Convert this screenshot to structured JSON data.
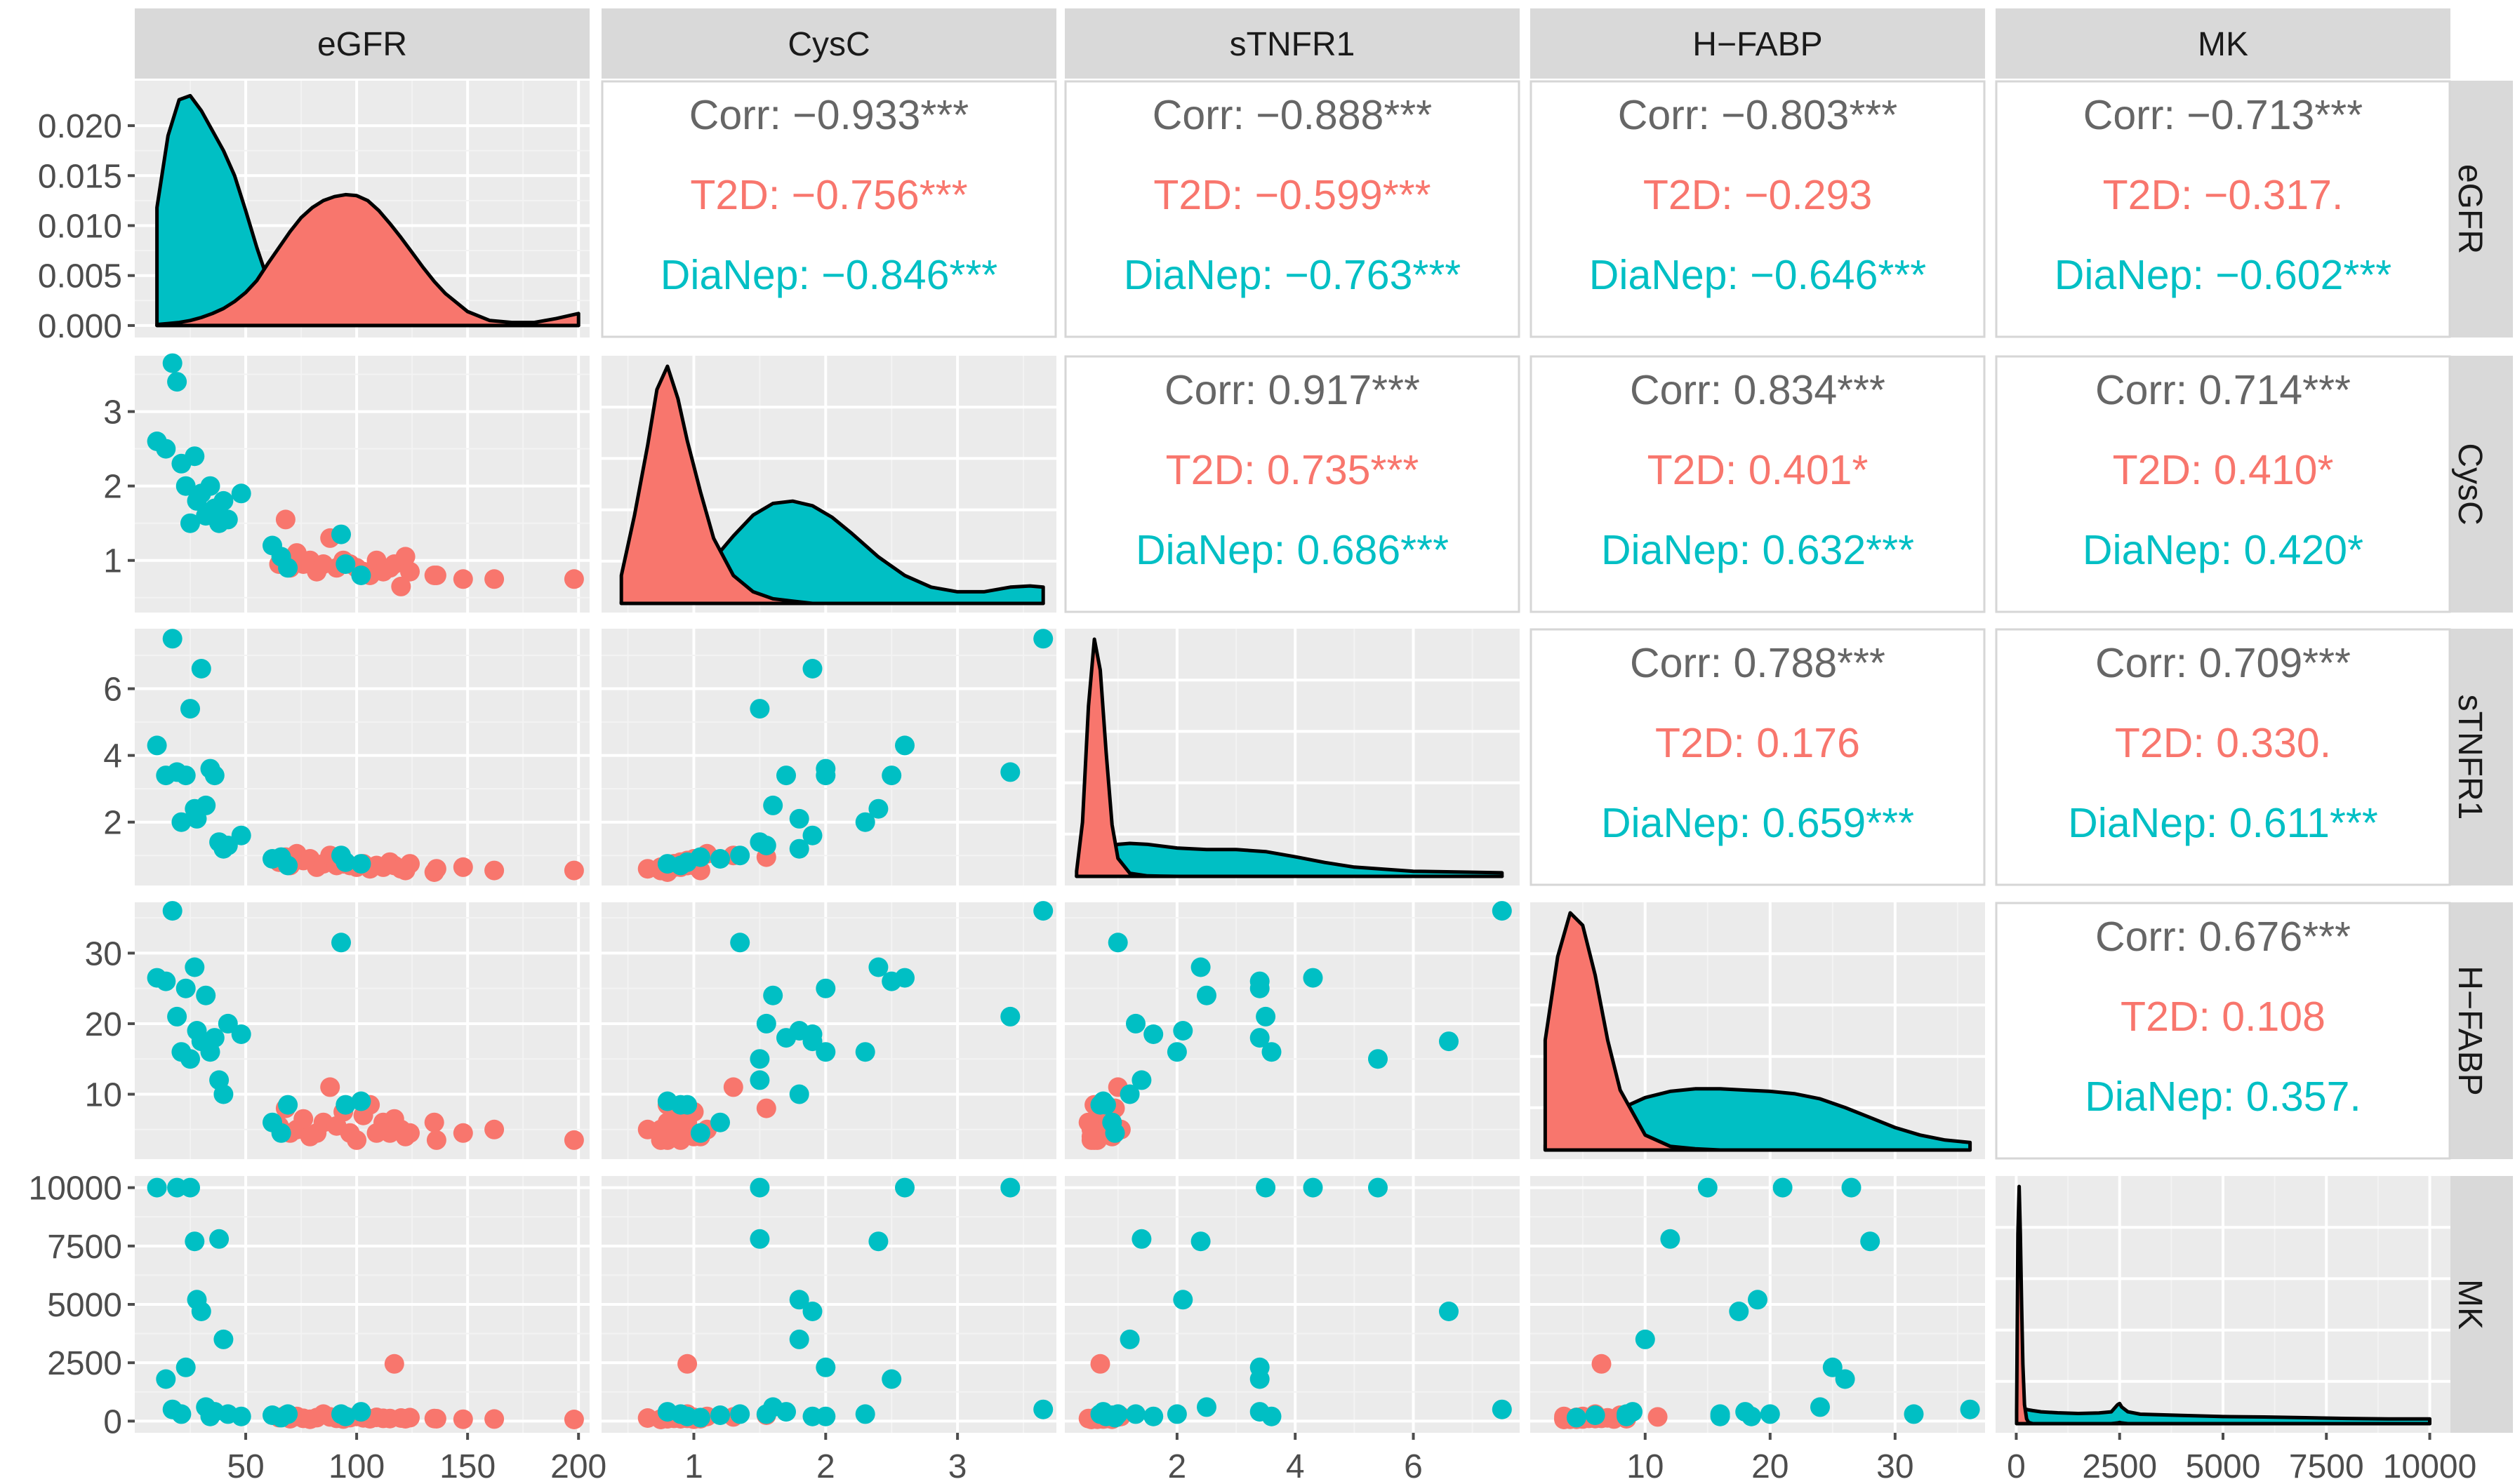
{
  "colors": {
    "panel": "#ebebeb",
    "strip": "#d9d9d9",
    "grid_major": "#ffffff",
    "grid_minor": "#f3f3f3",
    "axis_text": "#4d4d4d",
    "strip_text": "#1a1a1a",
    "corr_text": "#666666",
    "curve": "#000000"
  },
  "chart_data": {
    "type": "scatter-matrix",
    "variables": [
      "eGFR",
      "CysC",
      "sTNFR1",
      "H−FABP",
      "MK"
    ],
    "groups": [
      {
        "name": "T2D",
        "color": "#F8766D"
      },
      {
        "name": "DiaNep",
        "color": "#00BFC4"
      }
    ],
    "axes": [
      {
        "range": [
          0,
          205
        ],
        "ticks": [
          50,
          100,
          150,
          200
        ],
        "minor": [
          25,
          75,
          125,
          175
        ],
        "tick_labels": [
          "50",
          "100",
          "150",
          "200"
        ]
      },
      {
        "range": [
          0.3,
          3.75
        ],
        "ticks": [
          1,
          2,
          3
        ],
        "minor": [
          0.5,
          1.5,
          2.5,
          3.5
        ],
        "tick_labels": [
          "1",
          "2",
          "3"
        ]
      },
      {
        "range": [
          0.1,
          7.8
        ],
        "ticks": [
          2,
          4,
          6
        ],
        "minor": [
          1,
          3,
          5,
          7
        ],
        "tick_labels": [
          "2",
          "4",
          "6"
        ]
      },
      {
        "range": [
          0.8,
          37.2
        ],
        "ticks": [
          10,
          20,
          30
        ],
        "minor": [
          5,
          15,
          25,
          35
        ],
        "tick_labels": [
          "10",
          "20",
          "30"
        ]
      },
      {
        "range": [
          -500,
          10500
        ],
        "ticks": [
          0,
          2500,
          5000,
          7500,
          10000
        ],
        "minor": [
          1250,
          3750,
          6250,
          8750
        ],
        "tick_labels": [
          "0",
          "2500",
          "5000",
          "7500",
          "10000"
        ]
      }
    ],
    "density_axis": {
      "range": [
        -0.0012,
        0.0245
      ],
      "ticks": [
        0,
        0.005,
        0.01,
        0.015,
        0.02
      ],
      "minor": [
        0.0025,
        0.0075,
        0.0125,
        0.0175
      ],
      "tick_labels": [
        "0.000",
        "0.005",
        "0.010",
        "0.015",
        "0.020"
      ]
    },
    "densities": [
      {
        "x": [
          10,
          15,
          20,
          25,
          30,
          35,
          40,
          45,
          50,
          55,
          60,
          65,
          70,
          75,
          80,
          85,
          90,
          95,
          100,
          105,
          110,
          115,
          120,
          125,
          130,
          135,
          140,
          150,
          160,
          170,
          180,
          190,
          200
        ],
        "T2D": [
          0.0001,
          0.0002,
          0.0003,
          0.0005,
          0.0008,
          0.0012,
          0.0017,
          0.0024,
          0.0033,
          0.0045,
          0.0062,
          0.0078,
          0.0094,
          0.0108,
          0.0118,
          0.0125,
          0.0129,
          0.0131,
          0.013,
          0.0125,
          0.0115,
          0.0102,
          0.0088,
          0.0073,
          0.0058,
          0.0044,
          0.0032,
          0.0014,
          0.0005,
          0.0003,
          0.0003,
          0.0007,
          0.0012
        ],
        "DiaNep": [
          0.0118,
          0.019,
          0.0226,
          0.023,
          0.0215,
          0.0195,
          0.0175,
          0.015,
          0.0115,
          0.0078,
          0.0045,
          0.0022,
          0.0012,
          0.001,
          0.0015,
          0.0028,
          0.0038,
          0.0041,
          0.0035,
          0.0022,
          0.0011,
          0.0005,
          0.0002,
          0.0001,
          0,
          0,
          0,
          0,
          0,
          0,
          0,
          0,
          0
        ]
      },
      {
        "x": [
          0.45,
          0.55,
          0.65,
          0.72,
          0.8,
          0.88,
          0.95,
          1.05,
          1.15,
          1.3,
          1.45,
          1.6,
          1.75,
          1.9,
          2.05,
          2.2,
          2.4,
          2.6,
          2.8,
          3.0,
          3.2,
          3.4,
          3.55,
          3.65
        ],
        "T2D": [
          0.12,
          0.38,
          0.68,
          0.92,
          1.02,
          0.88,
          0.7,
          0.48,
          0.28,
          0.12,
          0.05,
          0.02,
          0.01,
          0,
          0,
          0,
          0,
          0,
          0,
          0,
          0,
          0,
          0,
          0
        ],
        "DiaNep": [
          0.005,
          0.01,
          0.015,
          0.025,
          0.04,
          0.06,
          0.08,
          0.13,
          0.19,
          0.29,
          0.38,
          0.43,
          0.44,
          0.42,
          0.37,
          0.3,
          0.2,
          0.12,
          0.07,
          0.05,
          0.05,
          0.07,
          0.075,
          0.07
        ]
      },
      {
        "x": [
          0.3,
          0.4,
          0.5,
          0.6,
          0.7,
          0.8,
          0.9,
          1.0,
          1.2,
          1.5,
          2.0,
          2.5,
          3.0,
          3.5,
          4.0,
          4.5,
          5.0,
          6.0,
          7.0,
          7.5
        ],
        "T2D": [
          0.1,
          1.05,
          3.3,
          4.6,
          4.0,
          2.4,
          1.0,
          0.35,
          0.06,
          0.01,
          0,
          0,
          0,
          0,
          0,
          0,
          0,
          0,
          0,
          0
        ],
        "DiaNep": [
          0.02,
          0.08,
          0.2,
          0.32,
          0.42,
          0.5,
          0.57,
          0.62,
          0.64,
          0.62,
          0.55,
          0.52,
          0.52,
          0.48,
          0.38,
          0.27,
          0.18,
          0.1,
          0.08,
          0.07
        ]
      },
      {
        "x": [
          2,
          3,
          4,
          5,
          6,
          7,
          8,
          10,
          12,
          14,
          16,
          18,
          20,
          22,
          24,
          26,
          28,
          30,
          32,
          34,
          36
        ],
        "T2D": [
          0.088,
          0.155,
          0.19,
          0.18,
          0.14,
          0.088,
          0.048,
          0.012,
          0.003,
          0.001,
          0,
          0,
          0,
          0,
          0,
          0,
          0,
          0,
          0,
          0,
          0
        ],
        "DiaNep": [
          0.004,
          0.007,
          0.011,
          0.016,
          0.021,
          0.027,
          0.033,
          0.042,
          0.047,
          0.049,
          0.049,
          0.048,
          0.047,
          0.045,
          0.041,
          0.034,
          0.026,
          0.018,
          0.012,
          0.008,
          0.006
        ]
      },
      {
        "x": [
          10,
          40,
          70,
          100,
          130,
          160,
          200,
          250,
          300,
          400,
          600,
          1000,
          1500,
          2000,
          2300,
          2450,
          2500,
          2550,
          2700,
          3000,
          4000,
          5000,
          6000,
          7000,
          8000,
          9000,
          10000
        ],
        "T2D": [
          0.05,
          0.8,
          1.0,
          0.8,
          0.5,
          0.25,
          0.08,
          0.02,
          0.005,
          0,
          0,
          0,
          0,
          0,
          0,
          0.003,
          0.005,
          0.003,
          0,
          0,
          0,
          0,
          0,
          0,
          0,
          0,
          0
        ],
        "DiaNep": [
          0.005,
          0.03,
          0.05,
          0.06,
          0.06,
          0.06,
          0.06,
          0.06,
          0.058,
          0.055,
          0.05,
          0.046,
          0.043,
          0.045,
          0.05,
          0.08,
          0.085,
          0.07,
          0.05,
          0.04,
          0.035,
          0.03,
          0.028,
          0.025,
          0.022,
          0.02,
          0.02
        ]
      }
    ],
    "correlations": [
      {
        "row": 0,
        "col": 1,
        "corr": "Corr: −0.933***",
        "t2d": "T2D: −0.756***",
        "dianep": "DiaNep: −0.846***"
      },
      {
        "row": 0,
        "col": 2,
        "corr": "Corr: −0.888***",
        "t2d": "T2D: −0.599***",
        "dianep": "DiaNep: −0.763***"
      },
      {
        "row": 0,
        "col": 3,
        "corr": "Corr: −0.803***",
        "t2d": "T2D: −0.293",
        "dianep": "DiaNep: −0.646***"
      },
      {
        "row": 0,
        "col": 4,
        "corr": "Corr: −0.713***",
        "t2d": "T2D: −0.317.",
        "dianep": "DiaNep: −0.602***"
      },
      {
        "row": 1,
        "col": 2,
        "corr": "Corr: 0.917***",
        "t2d": "T2D: 0.735***",
        "dianep": "DiaNep: 0.686***"
      },
      {
        "row": 1,
        "col": 3,
        "corr": "Corr: 0.834***",
        "t2d": "T2D: 0.401*",
        "dianep": "DiaNep: 0.632***"
      },
      {
        "row": 1,
        "col": 4,
        "corr": "Corr: 0.714***",
        "t2d": "T2D: 0.410*",
        "dianep": "DiaNep: 0.420*"
      },
      {
        "row": 2,
        "col": 3,
        "corr": "Corr: 0.788***",
        "t2d": "T2D: 0.176",
        "dianep": "DiaNep: 0.659***"
      },
      {
        "row": 2,
        "col": 4,
        "corr": "Corr: 0.709***",
        "t2d": "T2D: 0.330.",
        "dianep": "DiaNep: 0.611***"
      },
      {
        "row": 3,
        "col": 4,
        "corr": "Corr: 0.676***",
        "t2d": "T2D: 0.108",
        "dianep": "DiaNep: 0.357."
      }
    ],
    "observations": {
      "fields": [
        "eGFR",
        "CysC",
        "sTNFR1",
        "H−FABP",
        "MK"
      ],
      "T2D": [
        [
          65,
          0.95,
          0.8,
          5.5,
          150
        ],
        [
          68,
          1.55,
          0.95,
          8.0,
          250
        ],
        [
          70,
          0.9,
          0.7,
          4.5,
          100
        ],
        [
          73,
          1.1,
          1.05,
          5.0,
          200
        ],
        [
          76,
          0.95,
          0.85,
          6.5,
          120
        ],
        [
          79,
          1.0,
          0.9,
          4.0,
          80
        ],
        [
          82,
          0.85,
          0.65,
          4.5,
          150
        ],
        [
          85,
          0.95,
          0.75,
          6.0,
          300
        ],
        [
          88,
          1.3,
          1.0,
          11.0,
          180
        ],
        [
          91,
          0.9,
          0.7,
          5.5,
          120
        ],
        [
          94,
          1.0,
          0.75,
          7.5,
          90
        ],
        [
          97,
          0.95,
          0.7,
          4.5,
          150
        ],
        [
          100,
          0.9,
          0.65,
          3.5,
          200
        ],
        [
          103,
          0.85,
          0.75,
          7.0,
          140
        ],
        [
          106,
          0.8,
          0.6,
          8.5,
          100
        ],
        [
          109,
          1.0,
          0.7,
          4.5,
          160
        ],
        [
          112,
          0.85,
          0.65,
          6.0,
          120
        ],
        [
          115,
          0.9,
          0.8,
          4.5,
          110
        ],
        [
          117,
          0.95,
          0.7,
          6.5,
          2450
        ],
        [
          120,
          0.65,
          0.6,
          5.0,
          130
        ],
        [
          122,
          1.05,
          0.55,
          4.0,
          100
        ],
        [
          124,
          0.85,
          0.75,
          4.5,
          150
        ],
        [
          135,
          0.8,
          0.5,
          6.0,
          110
        ],
        [
          136,
          0.8,
          0.6,
          3.5,
          100
        ],
        [
          148,
          0.75,
          0.65,
          4.5,
          80
        ],
        [
          162,
          0.75,
          0.55,
          5.0,
          90
        ],
        [
          198,
          0.75,
          0.55,
          3.5,
          70
        ]
      ],
      "DiaNep": [
        [
          10,
          2.6,
          4.3,
          26.5,
          10000
        ],
        [
          14,
          2.5,
          3.4,
          26.0,
          1800
        ],
        [
          17,
          3.65,
          7.5,
          36.0,
          500
        ],
        [
          19,
          3.4,
          3.5,
          21.0,
          10000
        ],
        [
          21,
          2.3,
          2.0,
          16.0,
          300
        ],
        [
          23,
          2.0,
          3.4,
          25.0,
          2300
        ],
        [
          25,
          1.5,
          5.4,
          15.0,
          10000
        ],
        [
          27,
          2.4,
          2.4,
          28.0,
          7700
        ],
        [
          28,
          1.8,
          2.1,
          19.0,
          5200
        ],
        [
          30,
          1.9,
          6.6,
          17.5,
          4700
        ],
        [
          32,
          1.6,
          2.5,
          24.0,
          600
        ],
        [
          34,
          2.0,
          3.6,
          16.0,
          200
        ],
        [
          36,
          1.7,
          3.4,
          18.0,
          400
        ],
        [
          38,
          1.5,
          1.4,
          12.0,
          7800
        ],
        [
          40,
          1.8,
          1.2,
          10.0,
          3500
        ],
        [
          42,
          1.55,
          1.3,
          20.0,
          300
        ],
        [
          48,
          1.9,
          1.6,
          18.5,
          200
        ],
        [
          62,
          1.2,
          0.9,
          6.0,
          250
        ],
        [
          66,
          1.05,
          0.95,
          4.5,
          150
        ],
        [
          69,
          0.9,
          0.7,
          8.5,
          300
        ],
        [
          93,
          1.35,
          1.0,
          31.5,
          300
        ],
        [
          95,
          0.95,
          0.8,
          8.5,
          200
        ],
        [
          102,
          0.8,
          0.75,
          9.0,
          400
        ]
      ]
    }
  }
}
